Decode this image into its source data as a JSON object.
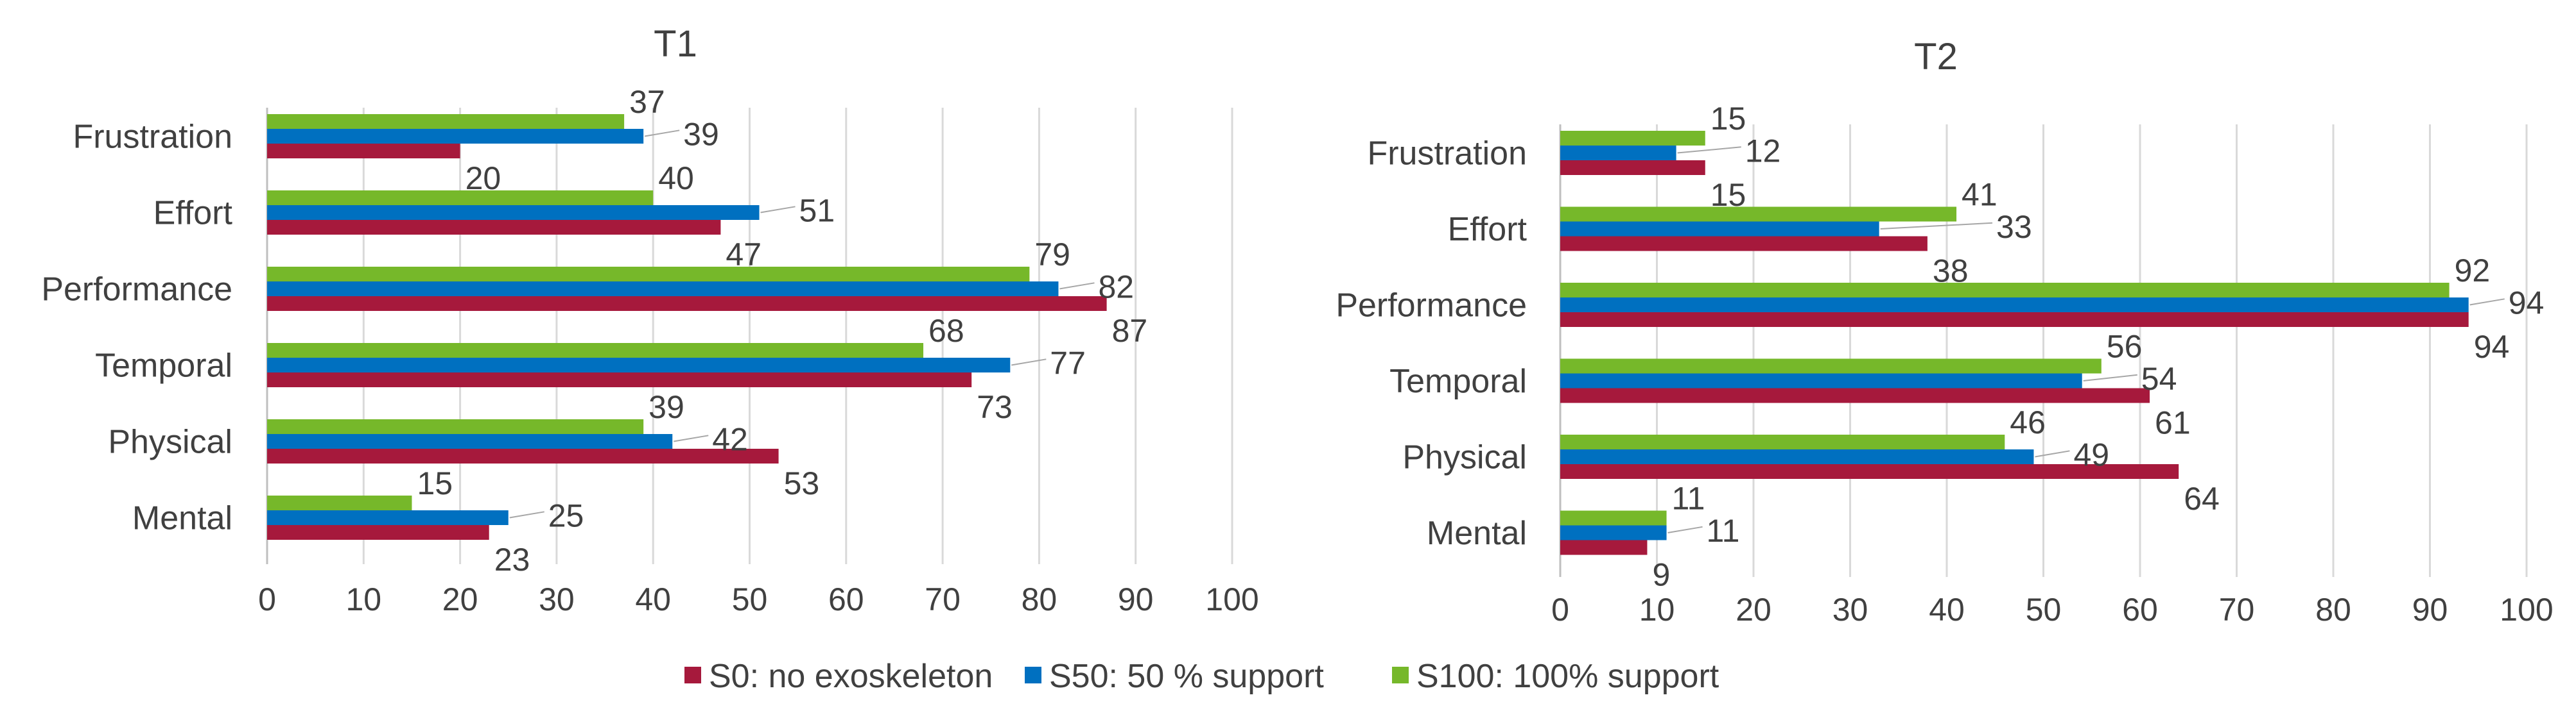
{
  "chart_data": [
    {
      "type": "bar",
      "orientation": "horizontal",
      "title": "T1",
      "categories": [
        "Frustration",
        "Effort",
        "Performance",
        "Temporal",
        "Physical",
        "Mental"
      ],
      "series": [
        {
          "name": "S100: 100% support",
          "color": "#76B82A",
          "values": [
            37,
            40,
            79,
            68,
            39,
            15
          ]
        },
        {
          "name": "S50: 50 % support",
          "color": "#0070C0",
          "values": [
            39,
            51,
            82,
            77,
            42,
            25
          ]
        },
        {
          "name": "S0: no exoskeleton",
          "color": "#A6193C",
          "values": [
            20,
            47,
            87,
            73,
            53,
            23
          ]
        }
      ],
      "xlim": [
        0,
        100
      ],
      "xticks": [
        0,
        10,
        20,
        30,
        40,
        50,
        60,
        70,
        80,
        90,
        100
      ],
      "grid": true
    },
    {
      "type": "bar",
      "orientation": "horizontal",
      "title": "T2",
      "categories": [
        "Frustration",
        "Effort",
        "Performance",
        "Temporal",
        "Physical",
        "Mental"
      ],
      "series": [
        {
          "name": "S100: 100% support",
          "color": "#76B82A",
          "values": [
            15,
            41,
            92,
            56,
            46,
            11
          ]
        },
        {
          "name": "S50: 50 % support",
          "color": "#0070C0",
          "values": [
            12,
            33,
            94,
            54,
            49,
            11
          ]
        },
        {
          "name": "S0: no exoskeleton",
          "color": "#A6193C",
          "values": [
            15,
            38,
            94,
            61,
            64,
            9
          ]
        }
      ],
      "xlim": [
        0,
        100
      ],
      "xticks": [
        0,
        10,
        20,
        30,
        40,
        50,
        60,
        70,
        80,
        90,
        100
      ],
      "grid": true
    }
  ],
  "legend": {
    "position": "bottom-center",
    "items": [
      {
        "label": "S0: no exoskeleton",
        "color": "#A6193C"
      },
      {
        "label": "S50: 50 % support",
        "color": "#0070C0"
      },
      {
        "label": "S100: 100% support",
        "color": "#76B82A"
      }
    ]
  }
}
